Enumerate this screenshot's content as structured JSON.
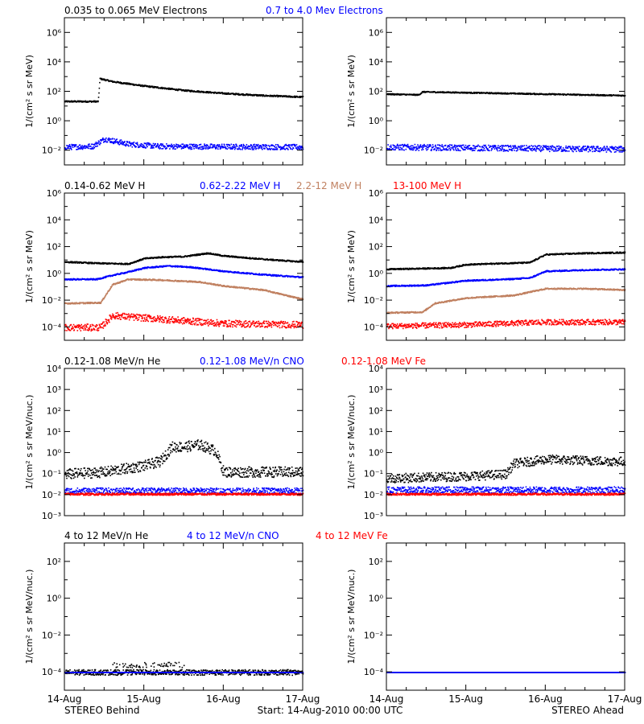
{
  "colors": {
    "black": "#000000",
    "blue": "#0000ff",
    "tan": "#c08060",
    "red": "#ff0000"
  },
  "footer": {
    "left": "STEREO Behind",
    "center": "Start: 14-Aug-2010 00:00 UTC",
    "right": "STEREO Ahead"
  },
  "x_ticks": [
    "14-Aug",
    "15-Aug",
    "16-Aug",
    "17-Aug"
  ],
  "chart_data": [
    {
      "type": "scatter",
      "group": "electrons",
      "side": "behind",
      "ylabel": "1/(cm² s sr MeV)",
      "yscale": "log",
      "ylim": [
        -3,
        7
      ],
      "yticks": [
        {
          "exp": -2,
          "label": "10⁻²"
        },
        {
          "exp": 0,
          "label": "10⁰"
        },
        {
          "exp": 2,
          "label": "10²"
        },
        {
          "exp": 4,
          "label": "10⁴"
        },
        {
          "exp": 6,
          "label": "10⁶"
        }
      ],
      "legend": [
        {
          "text": "0.035 to 0.065 MeV Electrons",
          "color": "black"
        },
        {
          "text": "0.7 to 4.0 Mev Electrons",
          "color": "blue"
        }
      ],
      "series": [
        {
          "name": "0.035 to 0.065 MeV Electrons",
          "color": "black",
          "scatter": 0.05,
          "x": [
            0,
            0.42,
            0.44,
            0.6,
            1.0,
            1.5,
            2.0,
            2.5,
            3.0
          ],
          "y": [
            1.35,
            1.35,
            2.9,
            2.7,
            2.4,
            2.1,
            1.9,
            1.75,
            1.65
          ]
        },
        {
          "name": "0.7 to 4.0 Mev Electrons",
          "color": "blue",
          "scatter": 0.18,
          "x": [
            0,
            0.35,
            0.5,
            0.8,
            1.2,
            3.0
          ],
          "y": [
            -1.75,
            -1.7,
            -1.2,
            -1.55,
            -1.7,
            -1.75
          ]
        }
      ]
    },
    {
      "type": "scatter",
      "group": "electrons",
      "side": "ahead",
      "ylabel": "1/(cm² s sr MeV)",
      "yscale": "log",
      "ylim": [
        -3,
        7
      ],
      "yticks": [
        {
          "exp": -2,
          "label": "10⁻²"
        },
        {
          "exp": 0,
          "label": "10⁰"
        },
        {
          "exp": 2,
          "label": "10²"
        },
        {
          "exp": 4,
          "label": "10⁴"
        },
        {
          "exp": 6,
          "label": "10⁶"
        }
      ],
      "legend": [],
      "series": [
        {
          "name": "0.035 to 0.065 MeV Electrons",
          "color": "black",
          "scatter": 0.04,
          "x": [
            0,
            0.4,
            0.45,
            1.0,
            2.0,
            3.0
          ],
          "y": [
            1.85,
            1.8,
            2.0,
            1.95,
            1.85,
            1.75
          ]
        },
        {
          "name": "0.7 to 4.0 Mev Electrons",
          "color": "blue",
          "scatter": 0.2,
          "x": [
            0,
            1.0,
            2.0,
            3.0
          ],
          "y": [
            -1.75,
            -1.8,
            -1.85,
            -1.9
          ]
        }
      ]
    },
    {
      "type": "scatter",
      "group": "protons",
      "side": "behind",
      "ylabel": "1/(cm² s sr MeV)",
      "yscale": "log",
      "ylim": [
        -5,
        6
      ],
      "yticks": [
        {
          "exp": -4,
          "label": "10⁻⁴"
        },
        {
          "exp": -2,
          "label": "10⁻²"
        },
        {
          "exp": 0,
          "label": "10⁰"
        },
        {
          "exp": 2,
          "label": "10²"
        },
        {
          "exp": 4,
          "label": "10⁴"
        },
        {
          "exp": 6,
          "label": "10⁶"
        }
      ],
      "legend": [
        {
          "text": "0.14-0.62 MeV H",
          "color": "black"
        },
        {
          "text": "0.62-2.22 MeV H",
          "color": "blue"
        },
        {
          "text": "2.2-12 MeV H",
          "color": "tan"
        },
        {
          "text": "13-100 MeV H",
          "color": "red"
        }
      ],
      "series": [
        {
          "name": "0.14-0.62 MeV H",
          "color": "black",
          "scatter": 0.05,
          "x": [
            0,
            0.4,
            0.8,
            1.0,
            1.2,
            1.5,
            1.8,
            2.0,
            2.5,
            3.0
          ],
          "y": [
            0.9,
            0.8,
            0.75,
            1.15,
            1.25,
            1.3,
            1.55,
            1.35,
            1.1,
            0.9
          ]
        },
        {
          "name": "0.62-2.22 MeV H",
          "color": "blue",
          "scatter": 0.05,
          "x": [
            0,
            0.4,
            0.6,
            0.8,
            1.0,
            1.3,
            1.6,
            2.0,
            2.5,
            3.0
          ],
          "y": [
            -0.4,
            -0.4,
            -0.1,
            0.15,
            0.45,
            0.6,
            0.5,
            0.2,
            -0.05,
            -0.25
          ]
        },
        {
          "name": "2.2-12 MeV H",
          "color": "tan",
          "scatter": 0.05,
          "x": [
            0,
            0.45,
            0.6,
            0.8,
            1.2,
            1.7,
            2.0,
            2.5,
            3.0
          ],
          "y": [
            -2.2,
            -2.15,
            -0.8,
            -0.4,
            -0.45,
            -0.6,
            -0.9,
            -1.2,
            -1.9
          ]
        },
        {
          "name": "13-100 MeV H",
          "color": "red",
          "scatter": 0.25,
          "x": [
            0,
            0.45,
            0.6,
            0.8,
            1.5,
            2.0,
            3.0
          ],
          "y": [
            -4.0,
            -4.0,
            -3.1,
            -3.2,
            -3.5,
            -3.7,
            -3.8
          ]
        }
      ]
    },
    {
      "type": "scatter",
      "group": "protons",
      "side": "ahead",
      "ylabel": "1/(cm² s sr MeV)",
      "yscale": "log",
      "ylim": [
        -5,
        6
      ],
      "yticks": [
        {
          "exp": -4,
          "label": "10⁻⁴"
        },
        {
          "exp": -2,
          "label": "10⁻²"
        },
        {
          "exp": 0,
          "label": "10⁰"
        },
        {
          "exp": 2,
          "label": "10²"
        },
        {
          "exp": 4,
          "label": "10⁴"
        },
        {
          "exp": 6,
          "label": "10⁶"
        }
      ],
      "legend": [],
      "series": [
        {
          "name": "0.14-0.62 MeV H",
          "color": "black",
          "scatter": 0.05,
          "x": [
            0,
            0.8,
            1.0,
            1.5,
            1.8,
            2.0,
            2.5,
            3.0
          ],
          "y": [
            0.35,
            0.45,
            0.7,
            0.8,
            0.85,
            1.45,
            1.55,
            1.6
          ]
        },
        {
          "name": "0.62-2.22 MeV H",
          "color": "blue",
          "scatter": 0.05,
          "x": [
            0,
            0.5,
            1.0,
            1.5,
            1.8,
            2.0,
            2.5,
            3.0
          ],
          "y": [
            -0.9,
            -0.85,
            -0.5,
            -0.4,
            -0.3,
            0.2,
            0.3,
            0.35
          ]
        },
        {
          "name": "2.2-12 MeV H",
          "color": "tan",
          "scatter": 0.05,
          "x": [
            0,
            0.45,
            0.6,
            1.0,
            1.6,
            2.0,
            2.5,
            3.0
          ],
          "y": [
            -2.9,
            -2.85,
            -2.2,
            -1.8,
            -1.6,
            -1.1,
            -1.1,
            -1.2
          ]
        },
        {
          "name": "13-100 MeV H",
          "color": "red",
          "scatter": 0.2,
          "x": [
            0,
            1.0,
            2.0,
            3.0
          ],
          "y": [
            -3.9,
            -3.8,
            -3.6,
            -3.6
          ]
        }
      ]
    },
    {
      "type": "scatter",
      "group": "heavy",
      "side": "behind",
      "ylabel": "1/(cm² s sr MeV/nuc.)",
      "yscale": "log",
      "ylim": [
        -3,
        4
      ],
      "yticks": [
        {
          "exp": -3,
          "label": "10⁻³"
        },
        {
          "exp": -2,
          "label": "10⁻²"
        },
        {
          "exp": -1,
          "label": "10⁻¹"
        },
        {
          "exp": 0,
          "label": "10⁰"
        },
        {
          "exp": 1,
          "label": "10¹"
        },
        {
          "exp": 2,
          "label": "10²"
        },
        {
          "exp": 3,
          "label": "10³"
        },
        {
          "exp": 4,
          "label": "10⁴"
        }
      ],
      "legend": [
        {
          "text": "0.12-1.08 MeV/n He",
          "color": "black"
        },
        {
          "text": "0.12-1.08 MeV/n CNO",
          "color": "blue"
        },
        {
          "text": "0.12-1.08 MeV Fe",
          "color": "red"
        }
      ],
      "series": [
        {
          "name": "0.12-1.08 MeV/n He",
          "color": "black",
          "scatter": 0.25,
          "x": [
            0,
            0.5,
            1.0,
            1.2,
            1.35,
            1.5,
            1.7,
            1.9,
            2.0,
            3.0
          ],
          "y": [
            -1.0,
            -0.9,
            -0.6,
            -0.4,
            0.3,
            0.3,
            0.4,
            0.1,
            -0.9,
            -0.9
          ]
        },
        {
          "name": "0.12-1.08 MeV/n CNO",
          "color": "blue",
          "scatter": 0.15,
          "x": [
            0,
            3.0
          ],
          "y": [
            -1.8,
            -1.8
          ]
        },
        {
          "name": "0.12-1.08 MeV Fe",
          "color": "red",
          "scatter": 0.05,
          "x": [
            0,
            3.0
          ],
          "y": [
            -1.95,
            -1.95
          ]
        }
      ]
    },
    {
      "type": "scatter",
      "group": "heavy",
      "side": "ahead",
      "ylabel": "1/(cm² s sr MeV/nuc.)",
      "yscale": "log",
      "ylim": [
        -3,
        4
      ],
      "yticks": [
        {
          "exp": -3,
          "label": "10⁻³"
        },
        {
          "exp": -2,
          "label": "10⁻²"
        },
        {
          "exp": -1,
          "label": "10⁻¹"
        },
        {
          "exp": 0,
          "label": "10⁰"
        },
        {
          "exp": 1,
          "label": "10¹"
        },
        {
          "exp": 2,
          "label": "10²"
        },
        {
          "exp": 3,
          "label": "10³"
        },
        {
          "exp": 4,
          "label": "10⁴"
        }
      ],
      "legend": [],
      "series": [
        {
          "name": "0.12-1.08 MeV/n He",
          "color": "black",
          "scatter": 0.22,
          "x": [
            0,
            1.0,
            1.5,
            1.6,
            2.0,
            2.5,
            3.0
          ],
          "y": [
            -1.2,
            -1.1,
            -1.0,
            -0.5,
            -0.3,
            -0.35,
            -0.4
          ]
        },
        {
          "name": "0.12-1.08 MeV/n CNO",
          "color": "blue",
          "scatter": 0.15,
          "x": [
            0,
            3.0
          ],
          "y": [
            -1.75,
            -1.75
          ]
        },
        {
          "name": "0.12-1.08 MeV Fe",
          "color": "red",
          "scatter": 0.05,
          "x": [
            0,
            3.0
          ],
          "y": [
            -1.95,
            -1.95
          ]
        }
      ]
    },
    {
      "type": "scatter",
      "group": "high",
      "side": "behind",
      "ylabel": "1/(cm² s sr MeV/nuc.)",
      "yscale": "log",
      "ylim": [
        -5,
        3
      ],
      "yticks": [
        {
          "exp": -4,
          "label": "10⁻⁴"
        },
        {
          "exp": -2,
          "label": "10⁻²"
        },
        {
          "exp": 0,
          "label": "10⁰"
        },
        {
          "exp": 2,
          "label": "10²"
        }
      ],
      "legend": [
        {
          "text": "4 to 12 MeV/n He",
          "color": "black"
        },
        {
          "text": "4 to 12 MeV/n CNO",
          "color": "blue"
        },
        {
          "text": "4 to 12 MeV Fe",
          "color": "red"
        }
      ],
      "series": [
        {
          "name": "4 to 12 MeV/n He",
          "color": "black",
          "scatter": 0.15,
          "baseline": -4.0,
          "burst": [
            0.6,
            1.5,
            -3.6
          ],
          "x": [
            0,
            3.0
          ],
          "y": [
            -4.0,
            -4.0
          ]
        },
        {
          "name": "4 to 12 MeV/n CNO",
          "color": "blue",
          "scatter": 0.0,
          "x": [
            0,
            3.0
          ],
          "y": [
            -4.0,
            -4.0
          ]
        }
      ]
    },
    {
      "type": "scatter",
      "group": "high",
      "side": "ahead",
      "ylabel": "1/(cm² s sr MeV/nuc.)",
      "yscale": "log",
      "ylim": [
        -5,
        3
      ],
      "yticks": [
        {
          "exp": -4,
          "label": "10⁻⁴"
        },
        {
          "exp": -2,
          "label": "10⁻²"
        },
        {
          "exp": 0,
          "label": "10⁰"
        },
        {
          "exp": 2,
          "label": "10²"
        }
      ],
      "legend": [],
      "series": [
        {
          "name": "4 to 12 MeV/n He",
          "color": "black",
          "scatter": 0.0,
          "x": [
            0,
            3.0
          ],
          "y": [
            -4.0,
            -4.0
          ]
        },
        {
          "name": "4 to 12 MeV/n CNO",
          "color": "blue",
          "scatter": 0.0,
          "x": [
            0,
            3.0
          ],
          "y": [
            -4.0,
            -4.0
          ]
        }
      ]
    }
  ]
}
